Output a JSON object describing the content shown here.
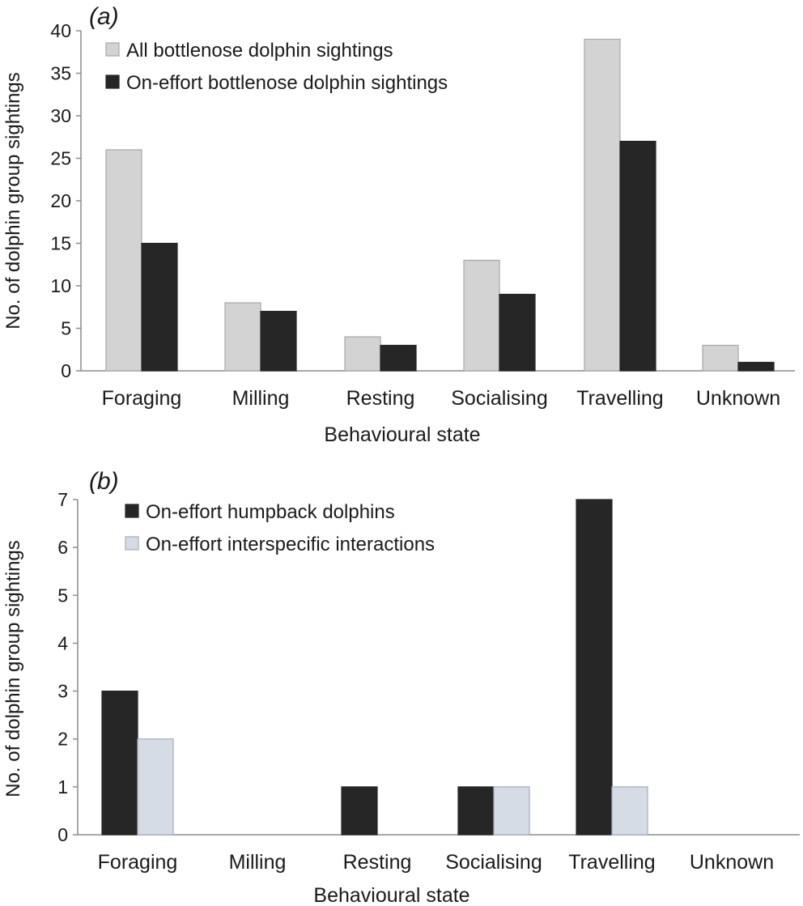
{
  "chart_data": [
    {
      "type": "bar",
      "panel_label": "(a)",
      "categories": [
        "Foraging",
        "Milling",
        "Resting",
        "Socialising",
        "Travelling",
        "Unknown"
      ],
      "series": [
        {
          "name": "All bottlenose dolphin sightings",
          "values": [
            26,
            8,
            4,
            13,
            39,
            3
          ],
          "color": "#d3d3d3",
          "stroke": "#a8a8a8"
        },
        {
          "name": "On-effort bottlenose dolphin sightings",
          "values": [
            15,
            7,
            3,
            9,
            27,
            1
          ],
          "color": "#262626",
          "stroke": "#262626"
        }
      ],
      "xlabel": "Behavioural state",
      "ylabel": "No. of dolphin group sightings",
      "ylim": [
        0,
        40
      ],
      "yticks": [
        0,
        5,
        10,
        15,
        20,
        25,
        30,
        35,
        40
      ],
      "grid": false,
      "legend": "top-left"
    },
    {
      "type": "bar",
      "panel_label": "(b)",
      "categories": [
        "Foraging",
        "Milling",
        "Resting",
        "Socialising",
        "Travelling",
        "Unknown"
      ],
      "series": [
        {
          "name": "On-effort humpback dolphins",
          "values": [
            3,
            0,
            1,
            1,
            7,
            0
          ],
          "color": "#262626",
          "stroke": "#262626"
        },
        {
          "name": "On-effort interspecific interactions",
          "values": [
            2,
            0,
            0,
            1,
            1,
            0
          ],
          "color": "#d6dce6",
          "stroke": "#a4acbc"
        }
      ],
      "xlabel": "Behavioural state",
      "ylabel": "No. of dolphin group sightings",
      "ylim": [
        0,
        7
      ],
      "yticks": [
        0,
        1,
        2,
        3,
        4,
        5,
        6,
        7
      ],
      "grid": false,
      "legend": "top-left"
    }
  ]
}
